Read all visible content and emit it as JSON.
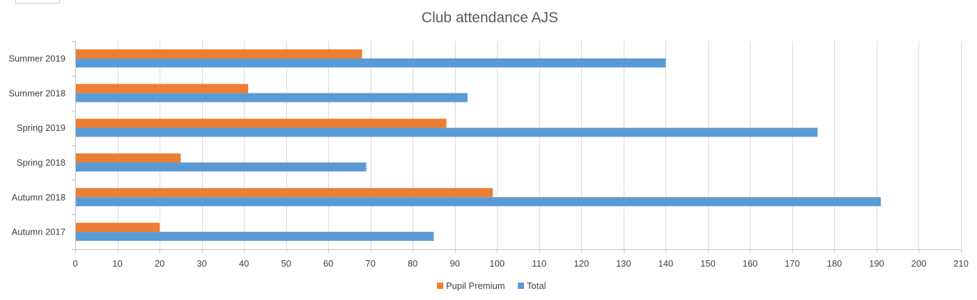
{
  "chart_data": {
    "type": "bar",
    "orientation": "horizontal",
    "title": "Club attendance AJS",
    "xlabel": "",
    "ylabel": "",
    "categories": [
      "Autumn 2017",
      "Autumn 2018",
      "Spring 2018",
      "Spring 2019",
      "Summer 2018",
      "Summer 2019"
    ],
    "series": [
      {
        "name": "Pupil Premium",
        "color": "#ED7D31",
        "values": [
          20,
          99,
          25,
          88,
          41,
          68
        ]
      },
      {
        "name": "Total",
        "color": "#5B9BD5",
        "values": [
          85,
          191,
          69,
          176,
          93,
          140
        ]
      }
    ],
    "xlim": [
      0,
      210
    ],
    "xticks": [
      0,
      10,
      20,
      30,
      40,
      50,
      60,
      70,
      80,
      90,
      100,
      110,
      120,
      130,
      140,
      150,
      160,
      170,
      180,
      190,
      200,
      210
    ],
    "grid": "vertical",
    "legend_position": "bottom"
  }
}
